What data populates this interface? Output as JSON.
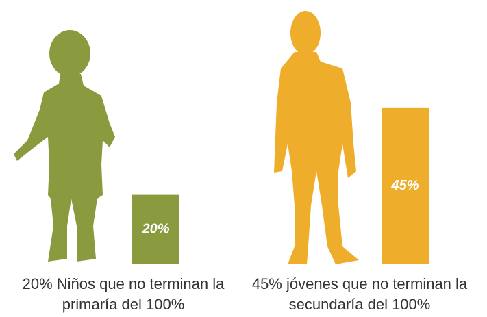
{
  "chart_data": {
    "type": "bar",
    "categories": [
      "20% Niños que no terminan la primaría del 100%",
      "45% jóvenes que no terminan la secundaría del 100%"
    ],
    "values": [
      20,
      45
    ],
    "value_labels": [
      "20%",
      "45%"
    ],
    "colors": [
      "#8a9a3e",
      "#efad2c"
    ]
  }
}
